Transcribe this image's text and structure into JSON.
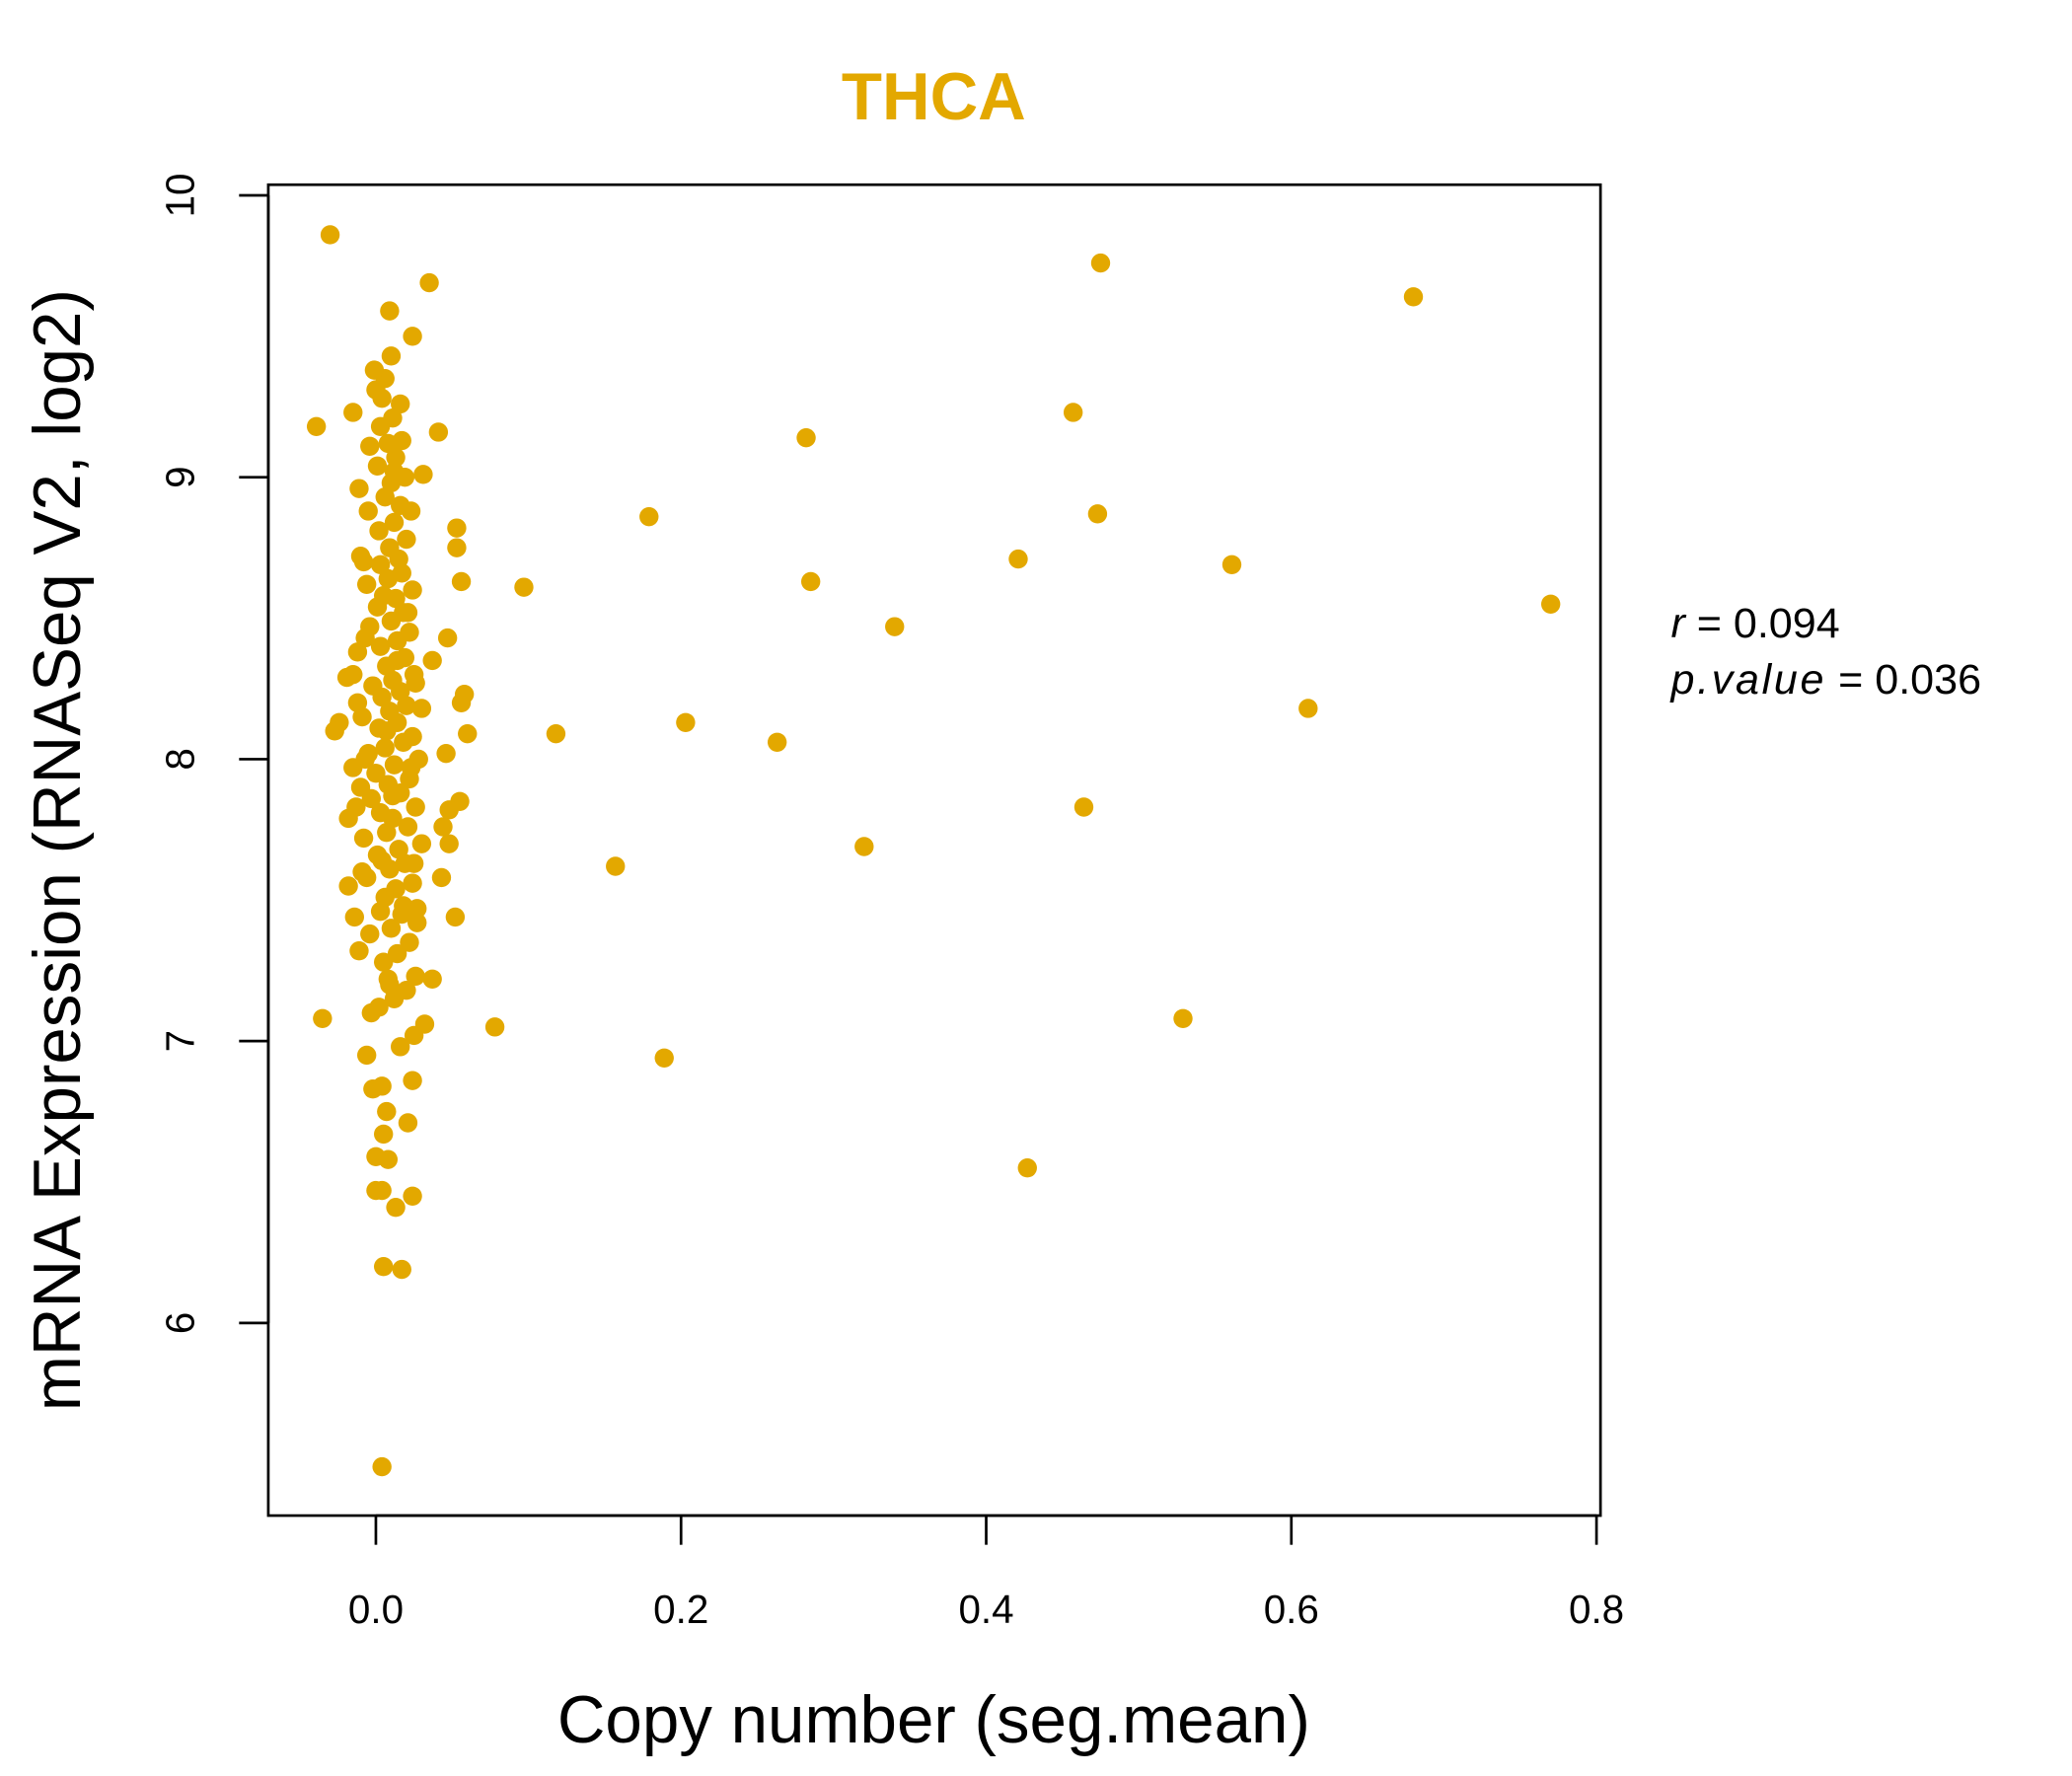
{
  "chart_data": {
    "type": "scatter",
    "title": "THCA",
    "xlabel": "Copy number (seg.mean)",
    "ylabel": "mRNA Expression (RNASeq V2, log2)",
    "xlim": [
      -0.07,
      0.805
    ],
    "ylim": [
      5.3,
      10.04
    ],
    "xticks": [
      "0.0",
      "0.2",
      "0.4",
      "0.6",
      "0.8"
    ],
    "xtick_values": [
      0,
      0.2,
      0.4,
      0.6,
      0.8
    ],
    "yticks": [
      "6",
      "7",
      "8",
      "9",
      "10"
    ],
    "ytick_values": [
      6,
      7,
      8,
      9,
      10
    ],
    "grid": false,
    "color": "#E3A800",
    "stats": {
      "r_label": "r",
      "r_value": "= 0.094",
      "p_label": "p.value",
      "p_value": "= 0.036"
    },
    "points": [
      [
        -0.03,
        9.86
      ],
      [
        -0.039,
        9.18
      ],
      [
        -0.035,
        7.08
      ],
      [
        0.035,
        9.69
      ],
      [
        0.004,
        5.49
      ],
      [
        0.005,
        6.2
      ],
      [
        0.017,
        6.19
      ],
      [
        0.475,
        9.76
      ],
      [
        0.68,
        9.64
      ],
      [
        0.457,
        9.23
      ],
      [
        0.282,
        9.14
      ],
      [
        0.179,
        8.86
      ],
      [
        0.473,
        8.87
      ],
      [
        0.421,
        8.71
      ],
      [
        0.561,
        8.69
      ],
      [
        0.097,
        8.61
      ],
      [
        0.285,
        8.63
      ],
      [
        0.34,
        8.47
      ],
      [
        0.77,
        8.55
      ],
      [
        0.611,
        8.18
      ],
      [
        0.203,
        8.13
      ],
      [
        0.118,
        8.09
      ],
      [
        0.263,
        8.06
      ],
      [
        0.464,
        7.83
      ],
      [
        0.32,
        7.69
      ],
      [
        0.157,
        7.62
      ],
      [
        0.529,
        7.08
      ],
      [
        0.078,
        7.05
      ],
      [
        0.189,
        6.94
      ],
      [
        0.427,
        6.55
      ],
      [
        0.053,
        8.82
      ],
      [
        0.053,
        8.75
      ],
      [
        0.056,
        8.63
      ],
      [
        0.047,
        8.43
      ],
      [
        0.037,
        8.35
      ],
      [
        0.058,
        8.23
      ],
      [
        0.056,
        8.2
      ],
      [
        0.06,
        8.09
      ],
      [
        0.046,
        8.02
      ],
      [
        0.055,
        7.85
      ],
      [
        0.048,
        7.82
      ],
      [
        0.044,
        7.76
      ],
      [
        0.048,
        7.7
      ],
      [
        0.043,
        7.58
      ],
      [
        0.052,
        7.44
      ],
      [
        0.037,
        7.22
      ],
      [
        0.032,
        7.06
      ],
      [
        0.041,
        9.16
      ],
      [
        0.031,
        9.01
      ],
      [
        0.024,
        9.5
      ],
      [
        0.01,
        9.43
      ],
      [
        0.009,
        9.59
      ],
      [
        -0.015,
        9.23
      ],
      [
        0.016,
        9.26
      ],
      [
        0.024,
        6.86
      ],
      [
        0.021,
        6.71
      ],
      [
        0.024,
        6.45
      ],
      [
        0.013,
        6.41
      ],
      [
        0.0,
        6.47
      ],
      [
        0.004,
        6.47
      ],
      [
        0.008,
        6.58
      ],
      [
        0.0,
        6.59
      ],
      [
        0.005,
        6.67
      ],
      [
        0.007,
        6.75
      ],
      [
        0.004,
        6.84
      ],
      [
        -0.002,
        6.83
      ],
      [
        -0.006,
        6.95
      ],
      [
        -0.003,
        7.1
      ],
      [
        -0.024,
        8.13
      ],
      [
        -0.027,
        8.1
      ],
      [
        -0.019,
        8.29
      ],
      [
        -0.015,
        8.3
      ],
      [
        -0.018,
        7.79
      ],
      [
        -0.015,
        7.97
      ],
      [
        -0.018,
        7.55
      ],
      [
        -0.014,
        7.44
      ],
      [
        -0.011,
        7.32
      ],
      [
        0.002,
        7.12
      ],
      [
        0.012,
        7.15
      ],
      [
        0.02,
        7.18
      ],
      [
        0.008,
        7.22
      ],
      [
        0.016,
        6.98
      ],
      [
        0.025,
        7.02
      ],
      [
        0.005,
        7.28
      ],
      [
        0.014,
        7.31
      ],
      [
        0.022,
        7.35
      ],
      [
        -0.004,
        7.38
      ],
      [
        0.01,
        7.4
      ],
      [
        0.027,
        7.42
      ],
      [
        0.003,
        7.46
      ],
      [
        0.018,
        7.48
      ],
      [
        0.006,
        7.51
      ],
      [
        0.013,
        7.54
      ],
      [
        0.024,
        7.56
      ],
      [
        -0.006,
        7.58
      ],
      [
        0.009,
        7.61
      ],
      [
        0.019,
        7.63
      ],
      [
        0.001,
        7.66
      ],
      [
        0.015,
        7.68
      ],
      [
        0.03,
        7.7
      ],
      [
        -0.008,
        7.72
      ],
      [
        0.007,
        7.74
      ],
      [
        0.021,
        7.76
      ],
      [
        0.011,
        7.79
      ],
      [
        0.003,
        7.81
      ],
      [
        0.026,
        7.83
      ],
      [
        -0.003,
        7.86
      ],
      [
        0.016,
        7.88
      ],
      [
        0.008,
        7.91
      ],
      [
        0.022,
        7.93
      ],
      [
        0.0,
        7.95
      ],
      [
        0.012,
        7.98
      ],
      [
        0.028,
        8.0
      ],
      [
        -0.005,
        8.02
      ],
      [
        0.006,
        8.04
      ],
      [
        0.018,
        8.06
      ],
      [
        0.024,
        8.08
      ],
      [
        0.002,
        8.11
      ],
      [
        0.014,
        8.13
      ],
      [
        -0.009,
        8.15
      ],
      [
        0.009,
        8.17
      ],
      [
        0.02,
        8.19
      ],
      [
        0.03,
        8.18
      ],
      [
        0.004,
        8.22
      ],
      [
        0.016,
        8.24
      ],
      [
        -0.002,
        8.26
      ],
      [
        0.011,
        8.28
      ],
      [
        0.025,
        8.3
      ],
      [
        0.007,
        8.33
      ],
      [
        0.019,
        8.36
      ],
      [
        -0.012,
        8.38
      ],
      [
        0.003,
        8.4
      ],
      [
        0.014,
        8.42
      ],
      [
        0.022,
        8.45
      ],
      [
        -0.004,
        8.47
      ],
      [
        0.01,
        8.49
      ],
      [
        0.018,
        8.52
      ],
      [
        0.001,
        8.54
      ],
      [
        0.013,
        8.57
      ],
      [
        0.024,
        8.6
      ],
      [
        -0.006,
        8.62
      ],
      [
        0.008,
        8.64
      ],
      [
        0.017,
        8.66
      ],
      [
        0.003,
        8.69
      ],
      [
        0.015,
        8.71
      ],
      [
        -0.01,
        8.72
      ],
      [
        0.009,
        8.75
      ],
      [
        0.02,
        8.78
      ],
      [
        0.002,
        8.81
      ],
      [
        0.012,
        8.84
      ],
      [
        -0.005,
        8.88
      ],
      [
        0.016,
        8.9
      ],
      [
        0.006,
        8.93
      ],
      [
        -0.011,
        8.96
      ],
      [
        0.01,
        8.98
      ],
      [
        0.019,
        9.0
      ],
      [
        0.001,
        9.04
      ],
      [
        0.013,
        9.07
      ],
      [
        -0.004,
        9.11
      ],
      [
        0.008,
        9.12
      ],
      [
        0.017,
        9.13
      ],
      [
        0.003,
        9.18
      ],
      [
        0.011,
        9.21
      ],
      [
        0.0,
        9.31
      ],
      [
        0.006,
        9.35
      ],
      [
        -0.001,
        9.38
      ],
      [
        0.004,
        9.28
      ],
      [
        0.012,
        9.02
      ],
      [
        0.005,
        8.58
      ],
      [
        0.014,
        8.35
      ],
      [
        0.007,
        8.1
      ],
      [
        0.011,
        7.87
      ],
      [
        0.004,
        7.64
      ],
      [
        0.017,
        7.45
      ],
      [
        0.009,
        7.2
      ],
      [
        0.023,
        8.88
      ],
      [
        0.021,
        8.52
      ],
      [
        0.026,
        8.27
      ],
      [
        0.023,
        7.97
      ],
      [
        0.025,
        7.63
      ],
      [
        0.027,
        7.47
      ],
      [
        0.026,
        7.23
      ],
      [
        -0.007,
        8.43
      ],
      [
        -0.007,
        8.0
      ],
      [
        -0.009,
        7.6
      ],
      [
        -0.01,
        7.9
      ],
      [
        -0.012,
        8.2
      ],
      [
        -0.008,
        8.7
      ],
      [
        -0.013,
        7.83
      ]
    ]
  }
}
